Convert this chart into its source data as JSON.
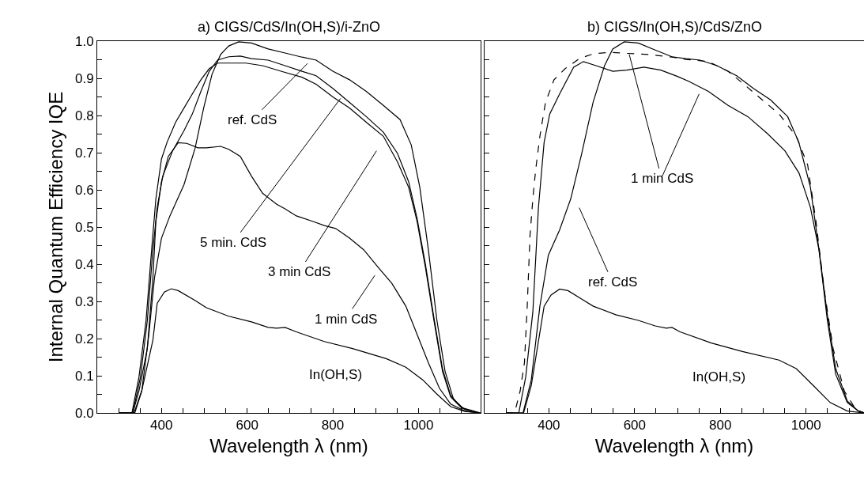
{
  "chart_data": [
    {
      "type": "line",
      "title": "a) CIGS/CdS/In(OH,S)/i-ZnO",
      "xlabel": "Wavelength λ (nm)",
      "ylabel": "Internal Quantum Efficiency IQE",
      "xlim": [
        250,
        1145
      ],
      "ylim": [
        0,
        1.0
      ],
      "xticks": [
        {
          "value": 300,
          "label": null
        },
        {
          "value": 350,
          "label": null
        },
        400,
        {
          "value": 450,
          "label": null
        },
        {
          "value": 500,
          "label": null
        },
        {
          "value": 550,
          "label": null
        },
        600,
        {
          "value": 650,
          "label": null
        },
        {
          "value": 700,
          "label": null
        },
        {
          "value": 750,
          "label": null
        },
        800,
        {
          "value": 850,
          "label": null
        },
        {
          "value": 900,
          "label": null
        },
        {
          "value": 950,
          "label": null
        },
        1000,
        {
          "value": 1050,
          "label": null
        },
        {
          "value": 1100,
          "label": null
        }
      ],
      "yticks": [
        {
          "value": 0,
          "label": "0.0"
        },
        {
          "value": 0.05,
          "label": null
        },
        {
          "value": 0.1,
          "label": "0.1"
        },
        {
          "value": 0.15,
          "label": null
        },
        {
          "value": 0.2,
          "label": "0.2"
        },
        {
          "value": 0.25,
          "label": null
        },
        {
          "value": 0.3,
          "label": "0.3"
        },
        {
          "value": 0.35,
          "label": null
        },
        {
          "value": 0.4,
          "label": "0.4"
        },
        {
          "value": 0.45,
          "label": null
        },
        {
          "value": 0.5,
          "label": "0.5"
        },
        {
          "value": 0.55,
          "label": null
        },
        {
          "value": 0.6,
          "label": "0.6"
        },
        {
          "value": 0.65,
          "label": null
        },
        {
          "value": 0.7,
          "label": "0.7"
        },
        {
          "value": 0.75,
          "label": null
        },
        {
          "value": 0.8,
          "label": "0.8"
        },
        {
          "value": 0.85,
          "label": null
        },
        {
          "value": 0.9,
          "label": "0.9"
        },
        {
          "value": 0.95,
          "label": null
        },
        {
          "value": 1.0,
          "label": "1.0"
        }
      ],
      "series": [
        {
          "color": "#000000",
          "line_style": "solid",
          "x": [
            300,
            337.7,
            354,
            370.5,
            383.6,
            400,
            419.7,
            452.5,
            478.7,
            498.4,
            518,
            538,
            557,
            580,
            610,
            649,
            688.5,
            728,
            761,
            800,
            839,
            878,
            918,
            957,
            983,
            1003,
            1023,
            1043,
            1062,
            1082,
            1108,
            1144
          ],
          "values": [
            0,
            0,
            0.059,
            0.211,
            0.363,
            0.47,
            0.53,
            0.614,
            0.713,
            0.82,
            0.911,
            0.964,
            0.987,
            0.998,
            0.995,
            0.979,
            0.968,
            0.957,
            0.949,
            0.919,
            0.896,
            0.865,
            0.827,
            0.789,
            0.721,
            0.607,
            0.439,
            0.249,
            0.112,
            0.036,
            0.009,
            0
          ]
        },
        {
          "color": "#000000",
          "line_style": "solid",
          "x": [
            300,
            333,
            351,
            367,
            380,
            390,
            403,
            426,
            452.5,
            472,
            492,
            511.5,
            531,
            557,
            584,
            610,
            649,
            688.5,
            728,
            761,
            800,
            839,
            878,
            918,
            951,
            977,
            996.7,
            1016,
            1036,
            1056,
            1075,
            1101,
            1144
          ],
          "values": [
            0,
            0,
            0.097,
            0.249,
            0.439,
            0.553,
            0.637,
            0.705,
            0.759,
            0.804,
            0.865,
            0.919,
            0.949,
            0.958,
            0.96,
            0.953,
            0.949,
            0.934,
            0.919,
            0.907,
            0.873,
            0.835,
            0.797,
            0.755,
            0.698,
            0.622,
            0.523,
            0.401,
            0.256,
            0.119,
            0.047,
            0.014,
            0
          ]
        },
        {
          "color": "#000000",
          "line_style": "solid",
          "x": [
            300,
            331,
            347.5,
            364,
            377,
            386.9,
            400,
            413,
            433,
            452.5,
            472,
            492,
            511.5,
            531,
            570,
            597,
            636,
            682,
            728,
            761,
            800,
            839,
            878,
            918,
            951,
            977,
            996.7,
            1016,
            1036,
            1056,
            1075,
            1101,
            1144
          ],
          "values": [
            0,
            0,
            0.097,
            0.249,
            0.439,
            0.576,
            0.683,
            0.728,
            0.782,
            0.82,
            0.858,
            0.896,
            0.926,
            0.941,
            0.941,
            0.941,
            0.934,
            0.918,
            0.903,
            0.884,
            0.85,
            0.82,
            0.782,
            0.744,
            0.675,
            0.607,
            0.515,
            0.393,
            0.249,
            0.112,
            0.043,
            0.013,
            0
          ]
        },
        {
          "color": "#000000",
          "line_style": "solid",
          "x": [
            300,
            333,
            347.5,
            367,
            380,
            386.9,
            400,
            416,
            439,
            459,
            485,
            505,
            538,
            557,
            584,
            610,
            636,
            669,
            688.5,
            714.8,
            754,
            780,
            806.6,
            839,
            872,
            905,
            938,
            970.5,
            996.7,
            1023,
            1049,
            1075,
            1108,
            1144
          ],
          "values": [
            0,
            0,
            0.06,
            0.173,
            0.363,
            0.515,
            0.622,
            0.69,
            0.727,
            0.725,
            0.713,
            0.713,
            0.717,
            0.709,
            0.69,
            0.637,
            0.591,
            0.561,
            0.549,
            0.53,
            0.515,
            0.504,
            0.496,
            0.47,
            0.439,
            0.393,
            0.348,
            0.287,
            0.211,
            0.135,
            0.066,
            0.024,
            0.005,
            0
          ]
        },
        {
          "color": "#000000",
          "line_style": "solid",
          "x": [
            300,
            336,
            354,
            380,
            390,
            406.6,
            423,
            439,
            479,
            505,
            557,
            610,
            649,
            669,
            688.5,
            714.8,
            780,
            846,
            924.6,
            970.5,
            1009.8,
            1042.6,
            1075,
            1108,
            1144
          ],
          "values": [
            0,
            0,
            0.06,
            0.196,
            0.295,
            0.325,
            0.334,
            0.329,
            0.302,
            0.283,
            0.26,
            0.245,
            0.23,
            0.228,
            0.23,
            0.218,
            0.192,
            0.173,
            0.146,
            0.123,
            0.089,
            0.051,
            0.017,
            0.004,
            0
          ]
        }
      ],
      "annotations": [
        "ref. CdS",
        "5 min. CdS",
        "3 min CdS",
        "1 min CdS",
        "In(OH,S)"
      ]
    },
    {
      "type": "line",
      "title": "b) CIGS/In(OH,S)/CdS/ZnO",
      "xlabel": "Wavelength λ (nm)",
      "tick_labels": "x",
      "xlim": [
        250,
        1135
      ],
      "ylim": [
        0,
        1.0
      ],
      "yticks": [
        {
          "value": 0,
          "label": null
        },
        {
          "value": 0.05,
          "label": null
        },
        {
          "value": 0.1,
          "label": null
        },
        {
          "value": 0.15,
          "label": null
        },
        {
          "value": 0.2,
          "label": null
        },
        {
          "value": 0.25,
          "label": null
        },
        {
          "value": 0.3,
          "label": null
        },
        {
          "value": 0.35,
          "label": null
        },
        {
          "value": 0.4,
          "label": null
        },
        {
          "value": 0.45,
          "label": null
        },
        {
          "value": 0.5,
          "label": null
        },
        {
          "value": 0.55,
          "label": null
        },
        {
          "value": 0.6,
          "label": null
        },
        {
          "value": 0.65,
          "label": null
        },
        {
          "value": 0.7,
          "label": null
        },
        {
          "value": 0.75,
          "label": null
        },
        {
          "value": 0.8,
          "label": null
        },
        {
          "value": 0.85,
          "label": null
        },
        {
          "value": 0.9,
          "label": null
        },
        {
          "value": 0.95,
          "label": null
        },
        {
          "value": 1.0,
          "label": null
        }
      ],
      "xticks": [
        {
          "value": 300,
          "label": null
        },
        {
          "value": 350,
          "label": null
        },
        400,
        {
          "value": 450,
          "label": null
        },
        {
          "value": 500,
          "label": null
        },
        {
          "value": 550,
          "label": null
        },
        600,
        {
          "value": 650,
          "label": null
        },
        {
          "value": 700,
          "label": null
        },
        {
          "value": 750,
          "label": null
        },
        800,
        {
          "value": 850,
          "label": null
        },
        {
          "value": 900,
          "label": null
        },
        {
          "value": 950,
          "label": null
        },
        1000,
        {
          "value": 1050,
          "label": null
        },
        {
          "value": 1100,
          "label": null
        }
      ],
      "series": [
        {
          "color": "#000000",
          "line_style": "solid",
          "x": [
            300,
            339.7,
            359,
            379,
            398.7,
            425,
            451,
            476.7,
            503,
            529.8,
            549,
            575.7,
            608.5,
            648,
            687,
            719.5,
            752.5,
            792,
            838,
            877,
            917,
            957,
            983,
            1010,
            1030,
            1049.5,
            1069,
            1096,
            1122,
            1135
          ],
          "values": [
            0,
            0,
            0.089,
            0.287,
            0.424,
            0.492,
            0.576,
            0.698,
            0.835,
            0.934,
            0.979,
            0.998,
            0.995,
            0.976,
            0.958,
            0.953,
            0.949,
            0.934,
            0.907,
            0.873,
            0.842,
            0.797,
            0.728,
            0.607,
            0.439,
            0.249,
            0.104,
            0.028,
            0.005,
            0
          ]
        },
        {
          "color": "#000000",
          "line_style": "solid",
          "x": [
            300,
            329.8,
            346,
            362.6,
            375.7,
            388.9,
            402,
            425,
            457.7,
            480.7,
            510,
            549,
            582,
            621.6,
            661,
            700,
            726,
            772,
            818,
            864,
            910,
            950.5,
            983.5,
            1010,
            1030,
            1049.5,
            1069,
            1096,
            1122,
            1135
          ],
          "values": [
            0,
            0,
            0.097,
            0.272,
            0.553,
            0.728,
            0.804,
            0.858,
            0.93,
            0.945,
            0.934,
            0.919,
            0.922,
            0.93,
            0.922,
            0.905,
            0.892,
            0.865,
            0.827,
            0.797,
            0.751,
            0.705,
            0.645,
            0.553,
            0.439,
            0.264,
            0.119,
            0.032,
            0.005,
            0
          ]
        },
        {
          "color": "#000000",
          "line_style": "dashed",
          "x": [
            300,
            320,
            333,
            343,
            349.5,
            356,
            362.6,
            369,
            379,
            392,
            412,
            438,
            471,
            503.6,
            543,
            582,
            634.8,
            687,
            719.5,
            772,
            818,
            858,
            897.7,
            937,
            977,
            1003.6,
            1023,
            1043,
            1063,
            1089,
            1116,
            1135
          ],
          "values": [
            0,
            0,
            0.059,
            0.135,
            0.287,
            0.477,
            0.576,
            0.652,
            0.744,
            0.835,
            0.896,
            0.926,
            0.953,
            0.966,
            0.97,
            0.967,
            0.964,
            0.957,
            0.951,
            0.945,
            0.919,
            0.881,
            0.842,
            0.804,
            0.744,
            0.667,
            0.515,
            0.325,
            0.173,
            0.059,
            0.009,
            0
          ]
        },
        {
          "color": "#000000",
          "line_style": "solid",
          "x": [
            300,
            341,
            359,
            388.9,
            405,
            425,
            444.6,
            477,
            503.6,
            556,
            608.5,
            648,
            674,
            687,
            706,
            779,
            851.5,
            937,
            977,
            1016.5,
            1056,
            1096,
            1135
          ],
          "values": [
            0,
            0,
            0.074,
            0.287,
            0.317,
            0.333,
            0.329,
            0.306,
            0.287,
            0.264,
            0.249,
            0.234,
            0.228,
            0.23,
            0.218,
            0.188,
            0.165,
            0.142,
            0.119,
            0.074,
            0.028,
            0.005,
            0
          ]
        }
      ],
      "annotations": [
        {
          "text": "1 min CdS",
          "x": 587.5,
          "y": 0.964
        },
        "ref. CdS",
        "In(OH,S)"
      ]
    }
  ]
}
